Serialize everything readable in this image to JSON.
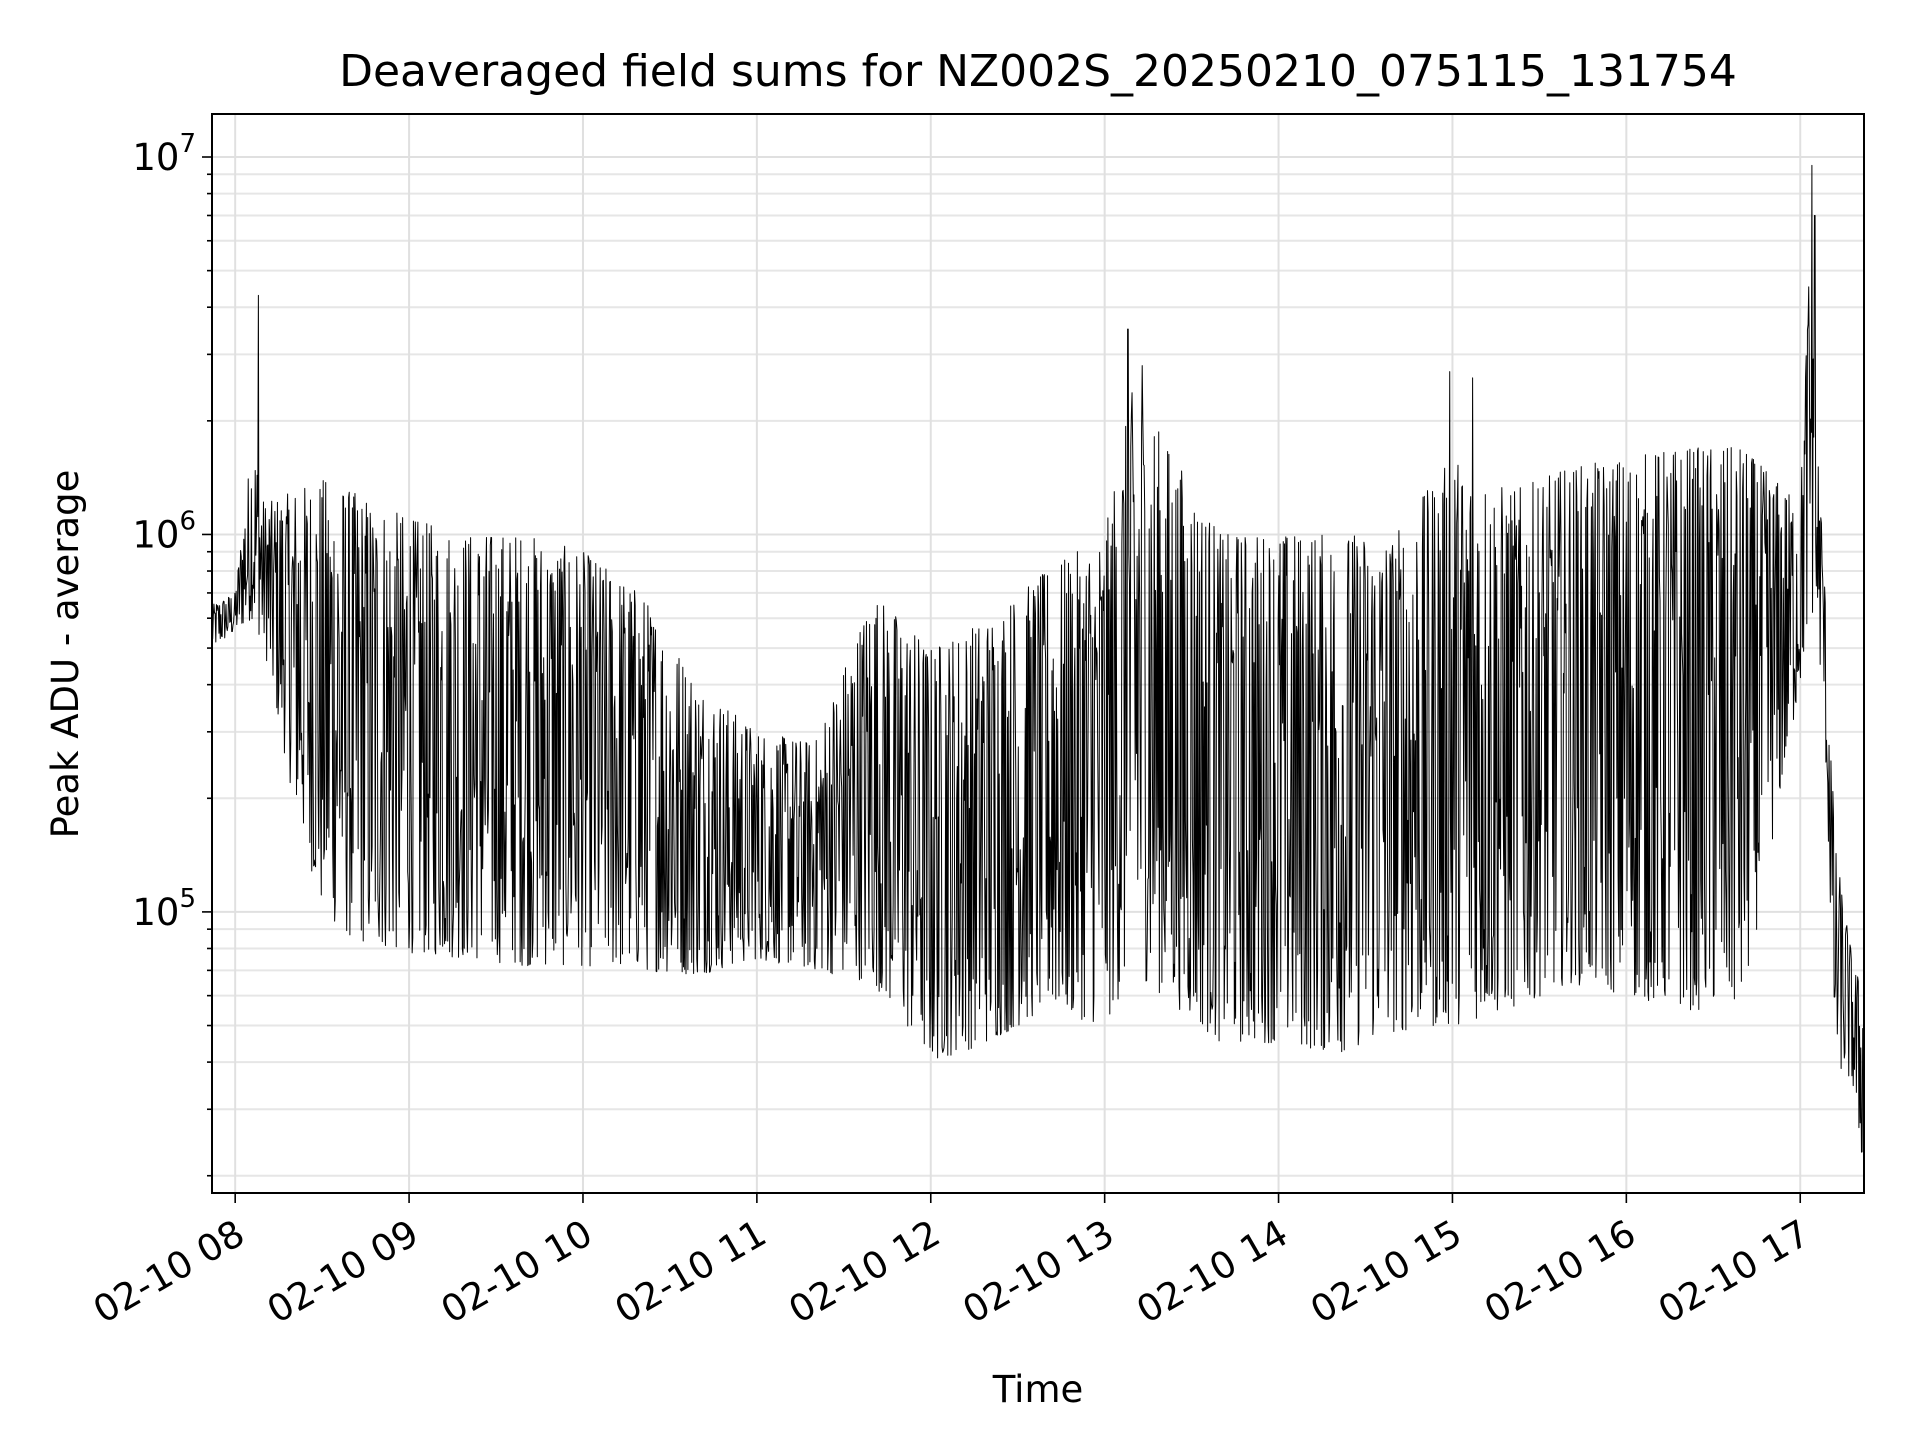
{
  "chart_data": {
    "type": "line",
    "title": "Deaveraged field sums for NZ002S_20250210_075115_131754",
    "xlabel": "Time",
    "ylabel": "Peak ADU - average",
    "yscale": "log",
    "ylim": [
      18000,
      13000000
    ],
    "xlim": [
      "2025-02-10 07:52",
      "2025-02-10 17:22"
    ],
    "grid": true,
    "x_tick_labels": [
      "02-10 08",
      "02-10 09",
      "02-10 10",
      "02-10 11",
      "02-10 12",
      "02-10 13",
      "02-10 14",
      "02-10 15",
      "02-10 16",
      "02-10 17"
    ],
    "y_tick_labels": [
      {
        "base": "10",
        "exp": "5",
        "value": 100000
      },
      {
        "base": "10",
        "exp": "6",
        "value": 1000000
      },
      {
        "base": "10",
        "exp": "7",
        "value": 10000000
      }
    ],
    "series": [
      {
        "color": "#000000",
        "x": [
          "2025-02-10 07:52",
          "2025-02-10 08:00",
          "2025-02-10 08:06",
          "2025-02-10 08:10",
          "2025-02-10 08:20",
          "2025-02-10 08:30",
          "2025-02-10 08:40",
          "2025-02-10 08:50",
          "2025-02-10 09:00",
          "2025-02-10 09:20",
          "2025-02-10 09:40",
          "2025-02-10 10:00",
          "2025-02-10 10:20",
          "2025-02-10 10:40",
          "2025-02-10 11:00",
          "2025-02-10 11:20",
          "2025-02-10 11:40",
          "2025-02-10 12:00",
          "2025-02-10 12:20",
          "2025-02-10 12:40",
          "2025-02-10 13:00",
          "2025-02-10 13:10",
          "2025-02-10 13:20",
          "2025-02-10 13:40",
          "2025-02-10 14:00",
          "2025-02-10 14:20",
          "2025-02-10 14:40",
          "2025-02-10 15:00",
          "2025-02-10 15:20",
          "2025-02-10 15:40",
          "2025-02-10 16:00",
          "2025-02-10 16:20",
          "2025-02-10 16:40",
          "2025-02-10 17:00",
          "2025-02-10 17:03",
          "2025-02-10 17:08",
          "2025-02-10 17:12",
          "2025-02-10 17:18",
          "2025-02-10 17:22"
        ],
        "low": [
          500000,
          550000,
          600000,
          500000,
          200000,
          100000,
          85000,
          80000,
          78000,
          75000,
          72000,
          72000,
          70000,
          68000,
          75000,
          70000,
          65000,
          40000,
          45000,
          55000,
          50000,
          70000,
          60000,
          45000,
          45000,
          42000,
          48000,
          50000,
          55000,
          65000,
          60000,
          55000,
          55000,
          400000,
          600000,
          400000,
          40000,
          35000,
          20000
        ],
        "high": [
          650000,
          700000,
          1800000,
          1200000,
          1300000,
          1400000,
          1300000,
          1200000,
          1100000,
          1000000,
          1000000,
          900000,
          700000,
          400000,
          300000,
          280000,
          700000,
          500000,
          600000,
          800000,
          1000000,
          2500000,
          1800000,
          1000000,
          1000000,
          1000000,
          1000000,
          1600000,
          1300000,
          1500000,
          1600000,
          1700000,
          1700000,
          1200000,
          5000000,
          900000,
          150000,
          75000,
          60000
        ],
        "spikes": [
          {
            "x": "2025-02-10 08:08",
            "y": 4300000
          },
          {
            "x": "2025-02-10 13:08",
            "y": 3500000
          },
          {
            "x": "2025-02-10 13:13",
            "y": 2800000
          },
          {
            "x": "2025-02-10 14:59",
            "y": 2700000
          },
          {
            "x": "2025-02-10 15:07",
            "y": 2600000
          },
          {
            "x": "2025-02-10 17:04",
            "y": 9500000
          },
          {
            "x": "2025-02-10 17:05",
            "y": 7000000
          }
        ]
      }
    ]
  }
}
